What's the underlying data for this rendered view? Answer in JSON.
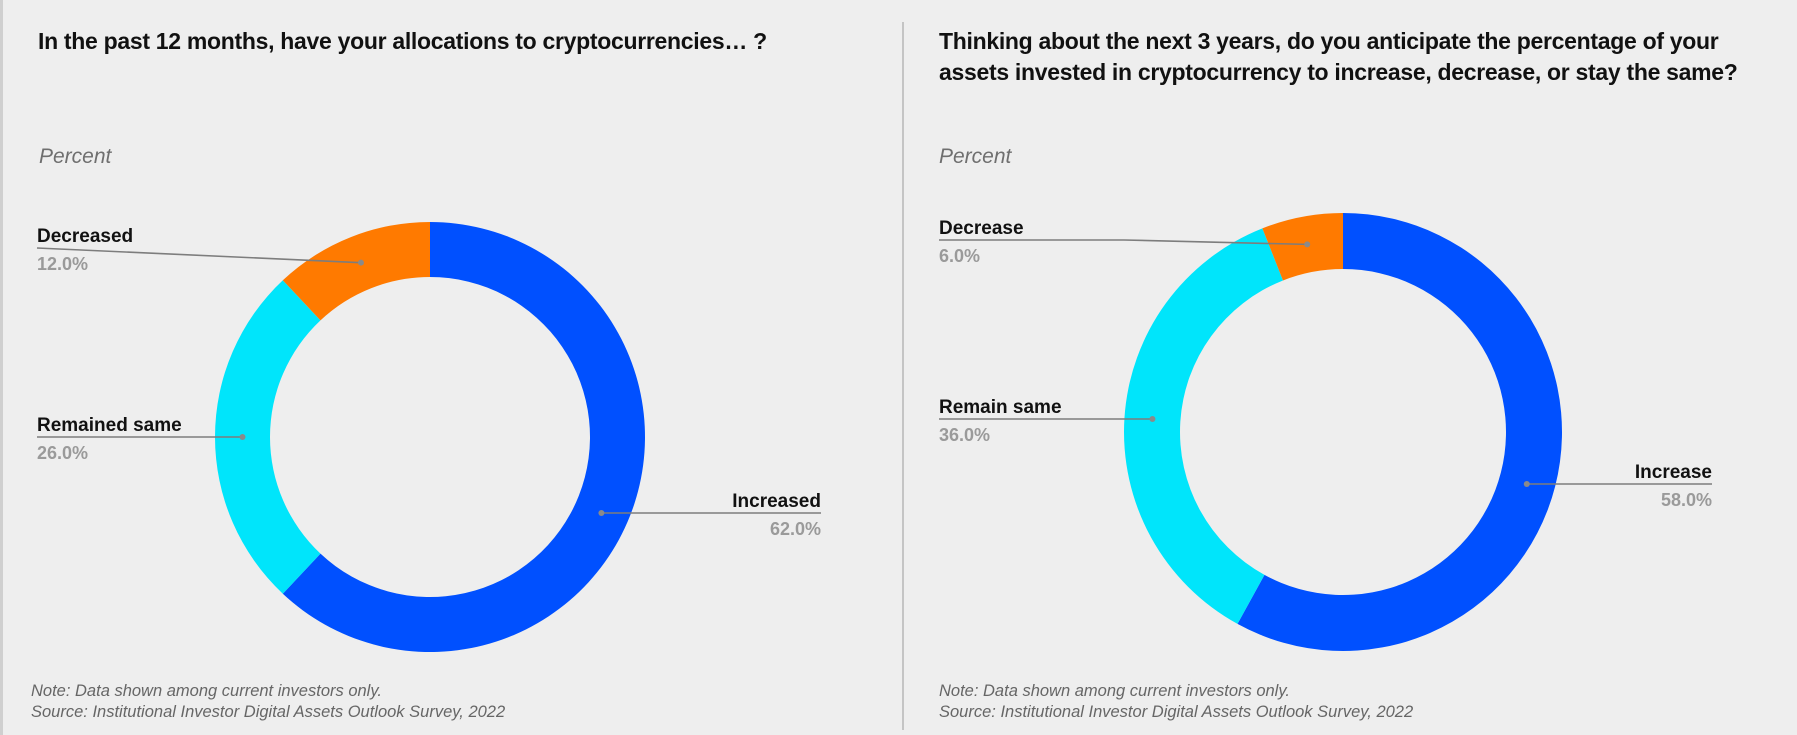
{
  "chart_data": [
    {
      "type": "pie",
      "variant": "donut",
      "title": "In the past 12 months, have your allocations to cryptocurrencies… ?",
      "subtitle": "Percent",
      "categories": [
        "Increased",
        "Remained same",
        "Decreased"
      ],
      "values": [
        62.0,
        26.0,
        12.0
      ],
      "value_labels": [
        "62.0%",
        "26.0%",
        "12.0%"
      ],
      "colors": [
        "#0050ff",
        "#00e5fb",
        "#ff7a00"
      ],
      "start": "top, clockwise",
      "footer": {
        "note": "Note: Data shown among current investors only.",
        "source": "Source: Institutional Investor Digital Assets Outlook Survey, 2022"
      }
    },
    {
      "type": "pie",
      "variant": "donut",
      "title": "Thinking about the next 3 years, do you anticipate the percentage of your assets invested in cryptocurrency to increase, decrease, or stay the same?",
      "subtitle": "Percent",
      "categories": [
        "Increase",
        "Remain same",
        "Decrease"
      ],
      "values": [
        58.0,
        36.0,
        6.0
      ],
      "value_labels": [
        "58.0%",
        "36.0%",
        "6.0%"
      ],
      "colors": [
        "#0050ff",
        "#00e5fb",
        "#ff7a00"
      ],
      "start": "top, clockwise",
      "footer": {
        "note": "Note: Data shown among current investors only.",
        "source": "Source: Institutional Investor Digital Assets Outlook Survey, 2022"
      }
    }
  ]
}
